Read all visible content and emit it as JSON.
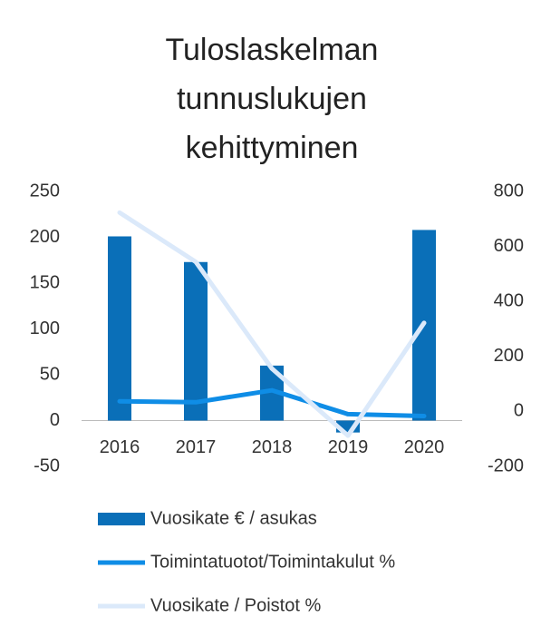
{
  "chart_data": {
    "type": "bar+line",
    "title": "Tuloslaskelman tunnuslukujen kehittyminen",
    "categories": [
      "2016",
      "2017",
      "2018",
      "2019",
      "2020"
    ],
    "series": [
      {
        "name": "Vuosikate € / asukas",
        "type": "bar",
        "color": "#0a6fb8",
        "values": [
          201,
          173,
          60,
          -13,
          208
        ]
      },
      {
        "name": "Toimintatuotot/Toimintakulut %",
        "type": "line",
        "color": "#0f8de6",
        "values": [
          21,
          20,
          33,
          7,
          5
        ]
      },
      {
        "name": "Vuosikate / Poistot %",
        "type": "line",
        "axis": "y2",
        "color": "#dbe9fa",
        "values": [
          723,
          544,
          156,
          -88,
          322
        ]
      }
    ],
    "ylim": [
      -50,
      250
    ],
    "yticks": [
      -50,
      0,
      50,
      100,
      150,
      200,
      250
    ],
    "y2lim": [
      -200,
      800
    ],
    "y2ticks": [
      -200,
      0,
      200,
      400,
      600,
      800
    ]
  }
}
